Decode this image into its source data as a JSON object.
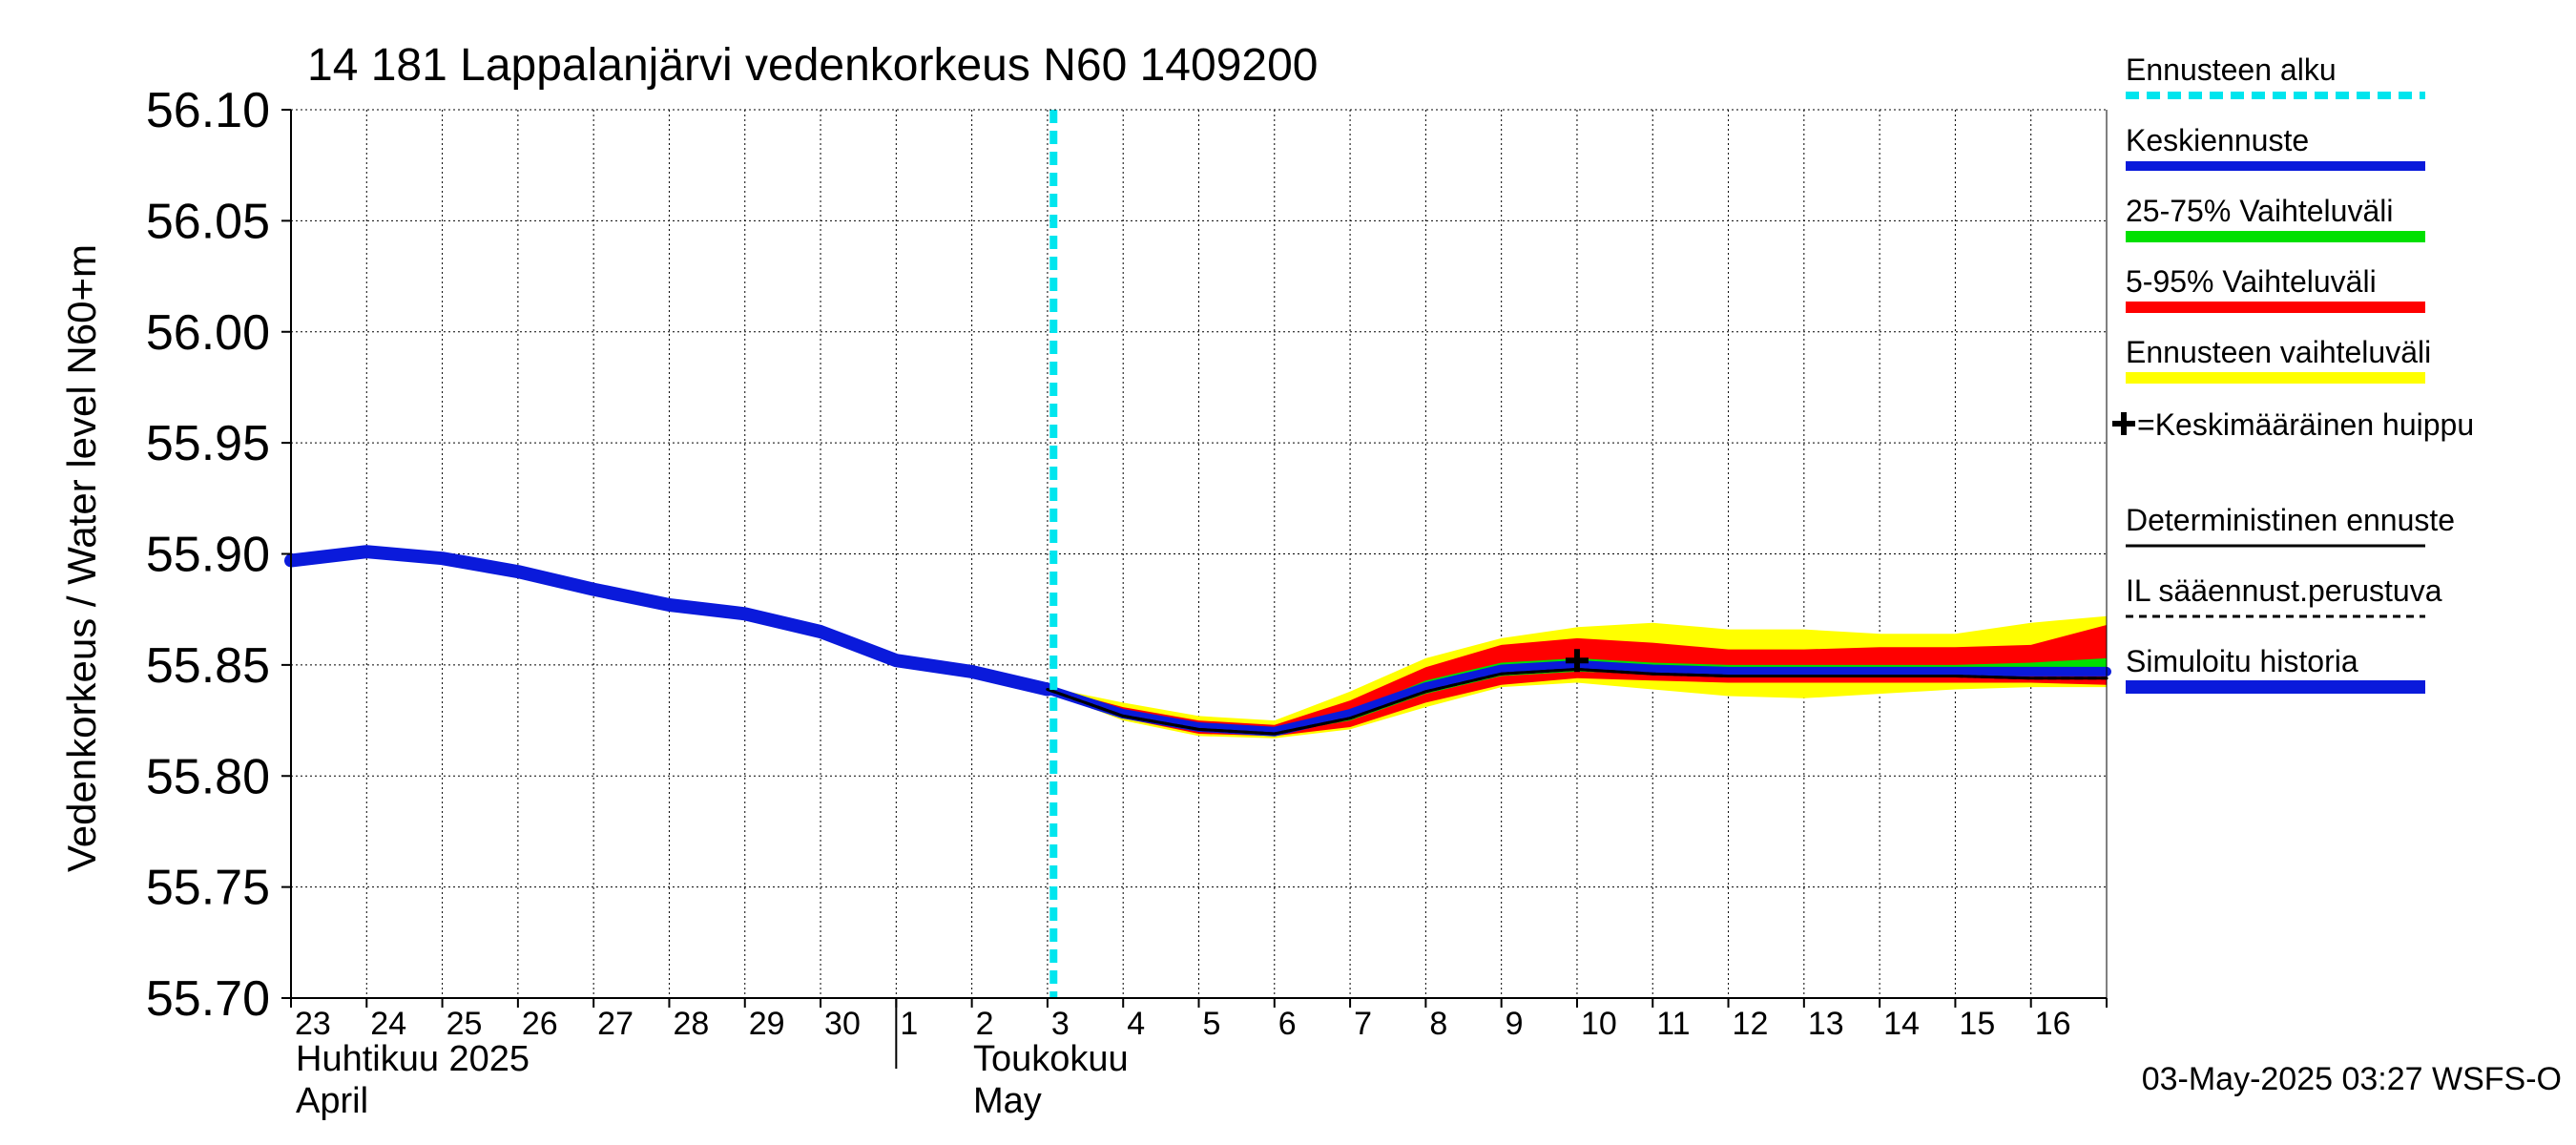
{
  "chart_data": {
    "type": "line",
    "title": "14 181 Lappalanjärvi vedenkorkeus N60 1409200",
    "ylabel": "Vedenkorkeus / Water level    N60+m",
    "ylim": [
      55.7,
      56.1
    ],
    "yticks": [
      "55.70",
      "55.75",
      "55.80",
      "55.85",
      "55.90",
      "55.95",
      "56.00",
      "56.05",
      "56.10"
    ],
    "grid": true,
    "xlim": [
      "2025-04-23",
      "2025-05-16"
    ],
    "x_tick_labels": [
      "23",
      "24",
      "25",
      "26",
      "27",
      "28",
      "29",
      "30",
      "1",
      "2",
      "3",
      "4",
      "5",
      "6",
      "7",
      "8",
      "9",
      "10",
      "11",
      "12",
      "13",
      "14",
      "15",
      "16"
    ],
    "month_labels": {
      "april_fi": "Huhtikuu  2025",
      "april_en": "April",
      "may_fi": "Toukokuu",
      "may_en": "May"
    },
    "forecast_start": "2025-05-03",
    "timestamp": "03-May-2025 03:27 WSFS-O",
    "legend_position": "right",
    "legend": {
      "forecast_start": "Ennusteen alku",
      "mean_forecast": "Keskiennuste",
      "range_25_75": "25-75% Vaihteluväli",
      "range_5_95": "5-95% Vaihteluväli",
      "forecast_range": "Ennusteen vaihteluväli",
      "mean_peak": "=Keskimääräinen huippu",
      "deterministic": "Deterministinen ennuste",
      "il_forecast": "IL sääennust.perustuva",
      "simulated_history": "Simuloitu historia"
    },
    "colors": {
      "forecast_start": "#00e5ee",
      "mean_forecast": "#0a1adb",
      "range_25_75": "#00e000",
      "range_5_95": "#ff0000",
      "forecast_range": "#ffff00",
      "history": "#0a1adb",
      "deterministic": "#000000"
    },
    "simulated_history": {
      "x": [
        "2025-04-23",
        "2025-04-24",
        "2025-04-25",
        "2025-04-26",
        "2025-04-27",
        "2025-04-28",
        "2025-04-29",
        "2025-04-30",
        "2025-05-01",
        "2025-05-02",
        "2025-05-03"
      ],
      "y": [
        55.897,
        55.901,
        55.898,
        55.892,
        55.884,
        55.877,
        55.873,
        55.865,
        55.852,
        55.847,
        55.839
      ]
    },
    "forecast_x": [
      "2025-05-03",
      "2025-05-04",
      "2025-05-05",
      "2025-05-06",
      "2025-05-07",
      "2025-05-08",
      "2025-05-09",
      "2025-05-10",
      "2025-05-11",
      "2025-05-12",
      "2025-05-13",
      "2025-05-14",
      "2025-05-15",
      "2025-05-16",
      "2025-05-17"
    ],
    "mean_forecast": [
      55.839,
      55.828,
      55.822,
      55.82,
      55.828,
      55.84,
      55.848,
      55.85,
      55.848,
      55.847,
      55.847,
      55.847,
      55.847,
      55.847,
      55.847
    ],
    "deterministic_forecast": [
      55.839,
      55.827,
      55.821,
      55.819,
      55.826,
      55.838,
      55.846,
      55.848,
      55.846,
      55.845,
      55.845,
      55.845,
      55.845,
      55.844,
      55.844
    ],
    "range_5_95": {
      "low": [
        55.838,
        55.826,
        55.819,
        55.818,
        55.822,
        55.833,
        55.841,
        55.844,
        55.843,
        55.842,
        55.842,
        55.842,
        55.842,
        55.842,
        55.841
      ],
      "high": [
        55.84,
        55.831,
        55.825,
        55.823,
        55.834,
        55.849,
        55.859,
        55.862,
        55.86,
        55.857,
        55.857,
        55.858,
        55.858,
        55.859,
        55.868
      ]
    },
    "range_25_75": {
      "low": [
        55.839,
        55.827,
        55.821,
        55.819,
        55.825,
        55.837,
        55.845,
        55.847,
        55.846,
        55.845,
        55.845,
        55.845,
        55.845,
        55.845,
        55.845
      ],
      "high": [
        55.839,
        55.829,
        55.823,
        55.821,
        55.829,
        55.843,
        55.851,
        55.853,
        55.851,
        55.85,
        55.85,
        55.85,
        55.85,
        55.851,
        55.853
      ]
    },
    "forecast_range": {
      "low": [
        55.838,
        55.825,
        55.818,
        55.817,
        55.821,
        55.831,
        55.84,
        55.842,
        55.839,
        55.836,
        55.835,
        55.837,
        55.839,
        55.84,
        55.84
      ],
      "high": [
        55.84,
        55.833,
        55.827,
        55.825,
        55.838,
        55.853,
        55.862,
        55.867,
        55.869,
        55.866,
        55.866,
        55.864,
        55.864,
        55.869,
        55.872
      ]
    },
    "mean_peak": {
      "x": "2025-05-10",
      "y": 55.852
    }
  }
}
